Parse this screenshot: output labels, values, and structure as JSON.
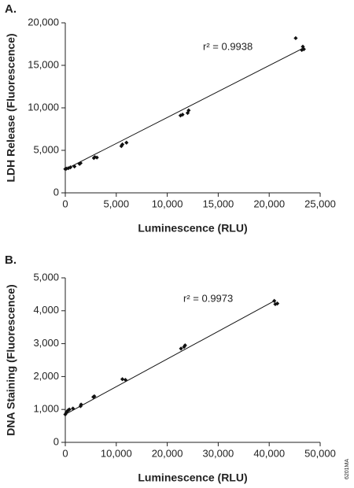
{
  "chart_data": [
    {
      "type": "scatter",
      "panel": "A.",
      "annotation": "r² = 0.9938",
      "x_label": "Luminescence (RLU)",
      "y_label": "LDH Release (Fluorescence)",
      "color": "#111111",
      "x": [
        0,
        100,
        300,
        500,
        900,
        1400,
        1500,
        2800,
        2900,
        3100,
        5500,
        5600,
        6000,
        11300,
        11500,
        12000,
        12100,
        22600,
        23200,
        23300,
        23400
      ],
      "values": [
        2800,
        2850,
        2900,
        3000,
        3100,
        3400,
        3500,
        4100,
        4200,
        4150,
        5500,
        5700,
        5900,
        9100,
        9200,
        9400,
        9700,
        18200,
        16800,
        17200,
        16900
      ],
      "fit": {
        "x": [
          0,
          23300
        ],
        "y": [
          2750,
          17000
        ]
      },
      "xlim": [
        0,
        25000
      ],
      "xticks": [
        0,
        {
          "value": 5000,
          "label": "5,000"
        },
        {
          "value": 10000,
          "label": "10,000"
        },
        {
          "value": 15000,
          "label": "15,000"
        },
        {
          "value": 20000,
          "label": "20,000"
        },
        {
          "value": 25000,
          "label": "25,000"
        }
      ],
      "ylim": [
        0,
        20000
      ],
      "yticks": [
        0,
        {
          "value": 5000,
          "label": "5,000"
        },
        {
          "value": 10000,
          "label": "10,000"
        },
        {
          "value": 15000,
          "label": "15,000"
        },
        {
          "value": 20000,
          "label": "20,000"
        }
      ]
    },
    {
      "type": "scatter",
      "panel": "B.",
      "annotation": "r² = 0.9973",
      "x_label": "Luminescence (RLU)",
      "y_label": "DNA Staining (Fluorescence)",
      "color": "#111111",
      "x": [
        0,
        200,
        400,
        600,
        800,
        1500,
        3000,
        3100,
        5500,
        5700,
        11200,
        11800,
        22700,
        23300,
        23500,
        41000,
        41200,
        41600
      ],
      "values": [
        850,
        900,
        950,
        980,
        1000,
        1030,
        1100,
        1150,
        1380,
        1400,
        1920,
        1900,
        2850,
        2900,
        2950,
        4300,
        4200,
        4220
      ],
      "fit": {
        "x": [
          0,
          41000
        ],
        "y": [
          850,
          4300
        ]
      },
      "xlim": [
        0,
        50000
      ],
      "xticks": [
        0,
        {
          "value": 10000,
          "label": "10,000"
        },
        {
          "value": 20000,
          "label": "20,000"
        },
        {
          "value": 30000,
          "label": "30,000"
        },
        {
          "value": 40000,
          "label": "40,000"
        },
        {
          "value": 50000,
          "label": "50,000"
        }
      ],
      "ylim": [
        0,
        5000
      ],
      "yticks": [
        0,
        {
          "value": 1000,
          "label": "1,000"
        },
        {
          "value": 2000,
          "label": "2,000"
        },
        {
          "value": 3000,
          "label": "3,000"
        },
        {
          "value": 4000,
          "label": "4,000"
        },
        {
          "value": 5000,
          "label": "5,000"
        }
      ]
    }
  ],
  "figure_code": "6201MA"
}
